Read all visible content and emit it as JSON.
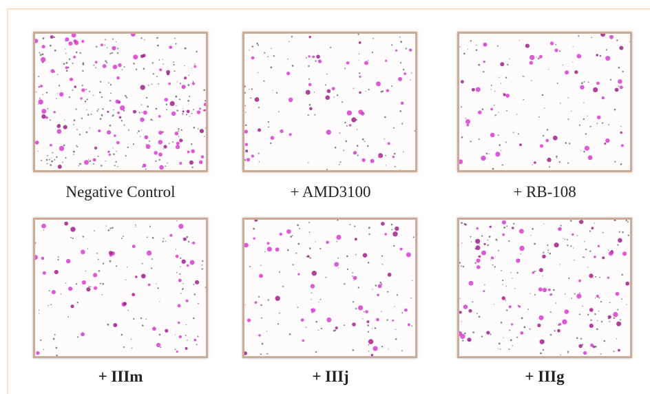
{
  "panels": [
    {
      "label": "Negative Control"
    },
    {
      "label": "+ AMD3100"
    },
    {
      "label": "+ RB-108"
    },
    {
      "label": "+ IIIm"
    },
    {
      "label": "+ IIIj"
    },
    {
      "label": "+ IIIg"
    }
  ]
}
